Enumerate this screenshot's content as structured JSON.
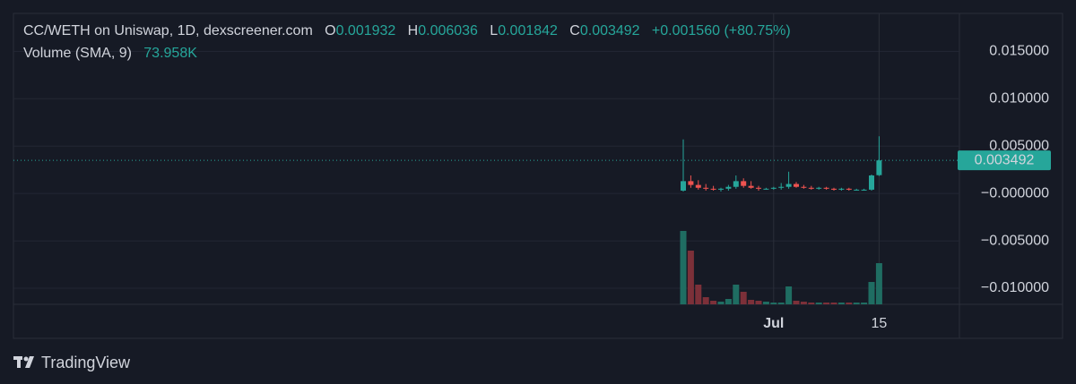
{
  "chart_data": {
    "type": "candlestick",
    "title": "CC/WETH on Uniswap, 1D, dexscreener.com",
    "ohlc_letters": [
      "O",
      "H",
      "L",
      "C"
    ],
    "change_label": "+0.001560 (+80.75%)",
    "categories": [
      null,
      null,
      null,
      null,
      null,
      null,
      null,
      null,
      null,
      null,
      null,
      null,
      "Jul",
      null,
      null,
      null,
      null,
      null,
      null,
      null,
      null,
      null,
      null,
      null,
      null,
      null,
      "15"
    ],
    "open": [
      0.0003,
      0.0013,
      0.0009,
      0.0006,
      0.0005,
      0.0004,
      0.0005,
      0.0007,
      0.0013,
      0.0008,
      0.0006,
      0.0005,
      0.0005,
      0.0006,
      0.0007,
      0.001,
      0.0007,
      0.0006,
      0.0005,
      0.0006,
      0.0005,
      0.0004,
      0.0005,
      0.0004,
      0.0004,
      0.0004,
      0.001932
    ],
    "high": [
      0.0057,
      0.0019,
      0.0014,
      0.001,
      0.0008,
      0.0006,
      0.0009,
      0.0019,
      0.0016,
      0.0013,
      0.0008,
      0.0006,
      0.0007,
      0.0011,
      0.0023,
      0.0012,
      0.0009,
      0.0008,
      0.0007,
      0.0007,
      0.0006,
      0.0006,
      0.0006,
      0.0005,
      0.0005,
      0.002,
      0.006036
    ],
    "low": [
      0.0002,
      0.0006,
      0.0004,
      0.0003,
      0.0003,
      0.0002,
      0.0003,
      0.0005,
      0.0006,
      0.0005,
      0.0003,
      0.0004,
      0.0004,
      0.0004,
      0.0005,
      0.0006,
      0.0005,
      0.0004,
      0.0004,
      0.0004,
      0.0003,
      0.0003,
      0.0003,
      0.0003,
      0.0003,
      0.0003,
      0.001842
    ],
    "close": [
      0.0013,
      0.0009,
      0.0006,
      0.0005,
      0.0004,
      0.0005,
      0.0007,
      0.0013,
      0.0008,
      0.0006,
      0.0005,
      0.0005,
      0.0006,
      0.0007,
      0.001,
      0.0007,
      0.0006,
      0.0005,
      0.0006,
      0.0005,
      0.0004,
      0.0005,
      0.0004,
      0.0004,
      0.0004,
      0.0019,
      0.003492
    ],
    "up_color": "#26a69a",
    "down_color": "#ef5350",
    "volume": {
      "name": "Volume (SMA, 9)",
      "sma_label": "73.958K",
      "values": [
        656000,
        480000,
        176000,
        64000,
        32000,
        24000,
        48000,
        176000,
        112000,
        40000,
        32000,
        24000,
        16000,
        16000,
        160000,
        32000,
        24000,
        16000,
        16000,
        16000,
        16000,
        16000,
        16000,
        16000,
        16000,
        200000,
        368000
      ],
      "up_color": "#1f6d62",
      "down_color": "#7c3039"
    },
    "ylim": [
      -0.0117,
      0.019
    ],
    "yticks": [
      {
        "value": 0.015,
        "label": "0.015000"
      },
      {
        "value": 0.01,
        "label": "0.010000"
      },
      {
        "value": 0.005,
        "label": "0.005000"
      },
      {
        "value": 0,
        "label": "−0.000000"
      },
      {
        "value": -0.005,
        "label": "−0.005000"
      },
      {
        "value": -0.01,
        "label": "−0.010000"
      }
    ],
    "grid": true,
    "last_price_line": true
  },
  "footer": {
    "brand": "TradingView"
  }
}
